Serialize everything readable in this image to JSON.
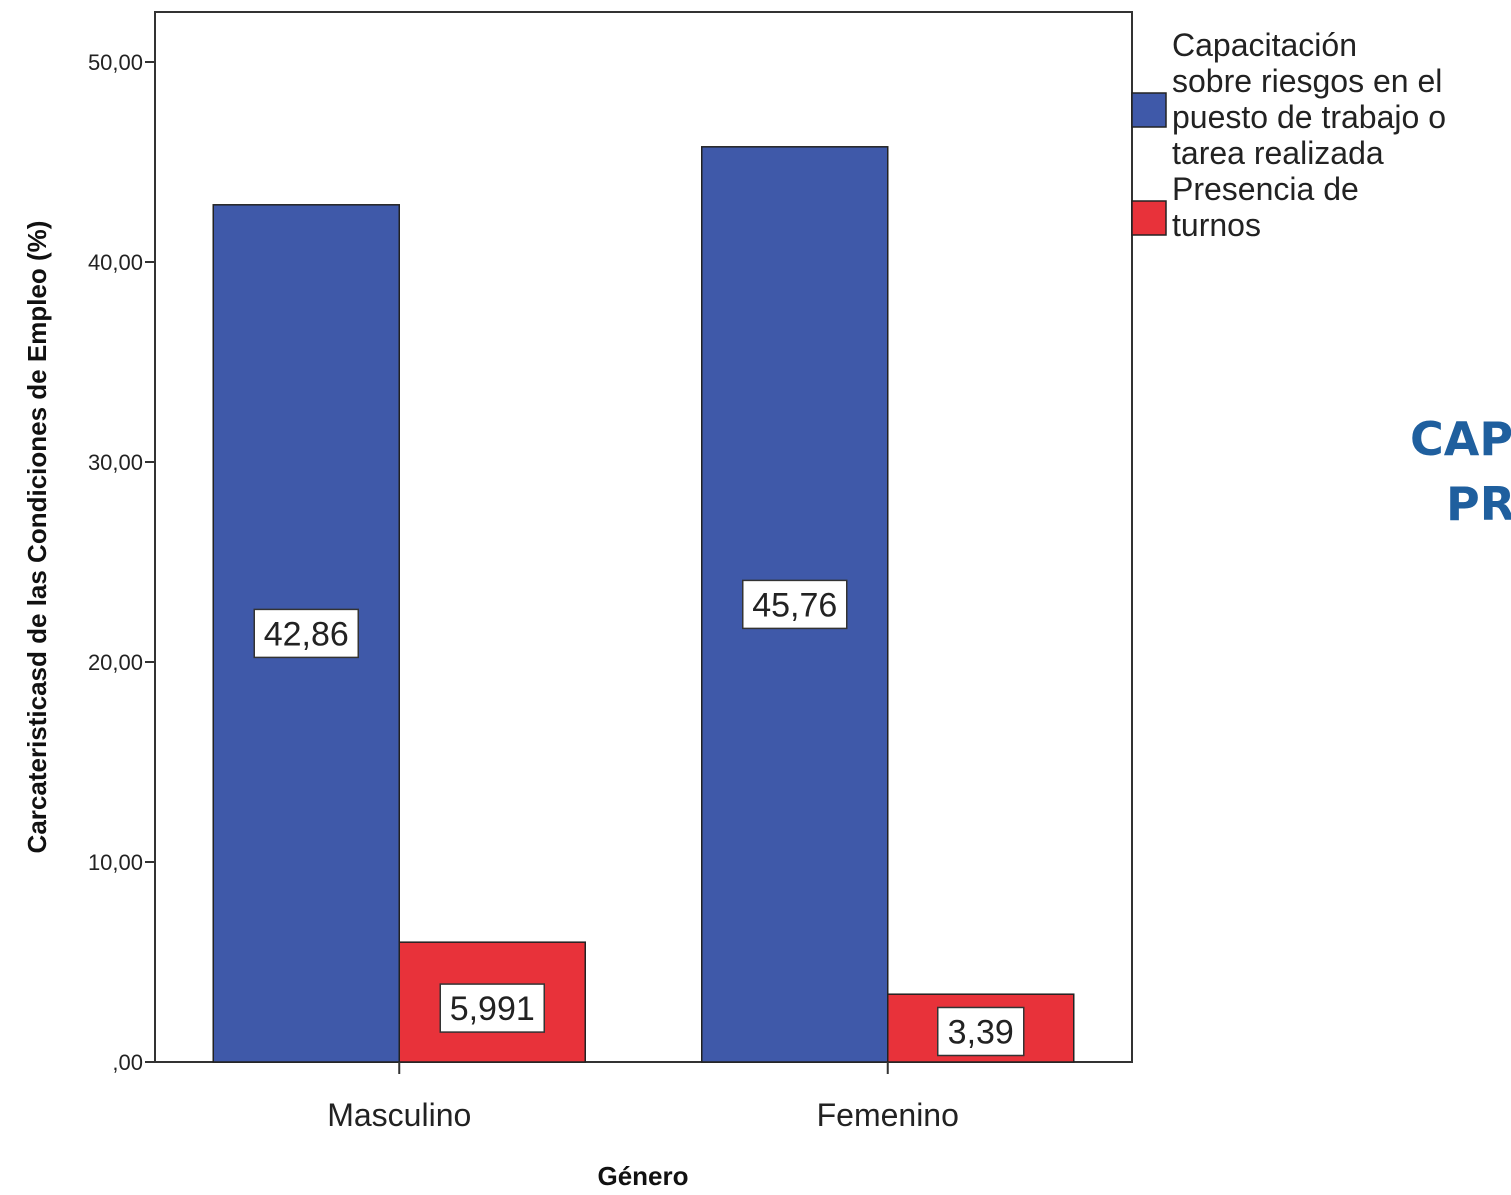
{
  "chart_data": {
    "type": "bar",
    "categories": [
      "Masculino",
      "Femenino"
    ],
    "series": [
      {
        "name": "Capacitación sobre riesgos en el puesto de trabajo o tarea realizada",
        "legend_lines": [
          "Capacitación",
          "sobre riesgos en el",
          "puesto de trabajo o",
          "tarea realizada"
        ],
        "values": [
          42.86,
          45.76
        ],
        "labels": [
          "42,86",
          "45,76"
        ],
        "color": "#3f59a9"
      },
      {
        "name": "Presencia de turnos",
        "legend_lines": [
          "Presencia de",
          "turnos"
        ],
        "values": [
          5.991,
          3.39
        ],
        "labels": [
          "5,991",
          "3,39"
        ],
        "color": "#e8323a"
      }
    ],
    "xlabel": "Género",
    "ylabel": "Carcateristicasd de las Condiciones de Empleo (%)",
    "ylim": [
      0,
      52.5
    ],
    "yticks": [
      0,
      10,
      20,
      30,
      40,
      50
    ],
    "ytick_labels": [
      ",00",
      "10,00",
      "20,00",
      "30,00",
      "40,00",
      "50,00"
    ],
    "grid": false,
    "legend_position": "right"
  },
  "side_text": [
    "CAP",
    "PR"
  ]
}
